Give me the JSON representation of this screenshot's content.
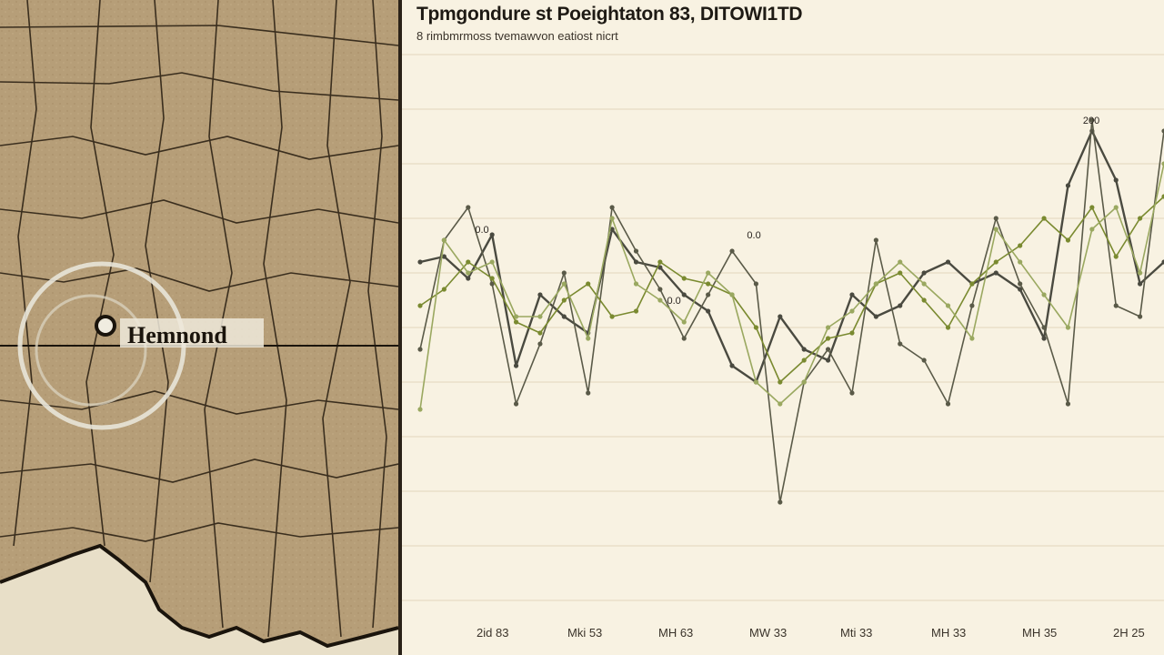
{
  "map": {
    "marker_label": "Hemnond",
    "colors": {
      "land": "#b69e78",
      "land_light": "#c8b28a",
      "border": "#3a2e1e",
      "coast": "#1a140c",
      "water": "#e8dfc8"
    }
  },
  "chart_data": {
    "type": "line",
    "title": "Tpmgondure st Poeightaton 83, DITOWI1TD",
    "subtitle": "8 rimbmrmoss tvemawvon eatiost nicrt",
    "xlabel": "",
    "ylabel": "",
    "x_tick_labels": [
      "2id 83",
      "Mki 53",
      "MH 63",
      "MW 33",
      "Mti 33",
      "MH 33",
      "MH 35",
      "2H 25"
    ],
    "ylim": [
      0,
      100
    ],
    "grid": true,
    "annotations": [
      {
        "text": "200",
        "x": 42,
        "y": 86
      },
      {
        "text": "0.0",
        "x": 4,
        "y": 66
      },
      {
        "text": "0.0",
        "x": 16,
        "y": 53
      },
      {
        "text": "0.0",
        "x": 21,
        "y": 65
      }
    ],
    "series": [
      {
        "color": "#4a4a40",
        "points": [
          [
            0,
            62
          ],
          [
            1.5,
            63
          ],
          [
            3,
            59
          ],
          [
            4.5,
            67
          ],
          [
            6,
            43
          ],
          [
            7.5,
            56
          ],
          [
            9,
            52
          ],
          [
            10.5,
            49
          ],
          [
            12,
            68
          ],
          [
            13.5,
            62
          ],
          [
            15,
            61
          ],
          [
            16.5,
            56
          ],
          [
            18,
            53
          ],
          [
            19.5,
            43
          ],
          [
            21,
            40
          ],
          [
            22.5,
            52
          ],
          [
            24,
            46
          ],
          [
            25.5,
            44
          ],
          [
            27,
            56
          ],
          [
            28.5,
            52
          ],
          [
            30,
            54
          ],
          [
            31.5,
            60
          ],
          [
            33,
            62
          ],
          [
            34.5,
            58
          ],
          [
            36,
            60
          ],
          [
            37.5,
            57
          ],
          [
            39,
            48
          ],
          [
            40.5,
            76
          ],
          [
            42,
            86
          ],
          [
            43.5,
            77
          ],
          [
            45,
            58
          ],
          [
            46.5,
            62
          ]
        ]
      },
      {
        "color": "#5a5a48",
        "points": [
          [
            0,
            46
          ],
          [
            1.5,
            66
          ],
          [
            3,
            72
          ],
          [
            4.5,
            58
          ],
          [
            6,
            36
          ],
          [
            7.5,
            47
          ],
          [
            9,
            60
          ],
          [
            10.5,
            38
          ],
          [
            12,
            72
          ],
          [
            13.5,
            64
          ],
          [
            15,
            57
          ],
          [
            16.5,
            48
          ],
          [
            18,
            56
          ],
          [
            19.5,
            64
          ],
          [
            21,
            58
          ],
          [
            22.5,
            18
          ],
          [
            24,
            40
          ],
          [
            25.5,
            46
          ],
          [
            27,
            38
          ],
          [
            28.5,
            66
          ],
          [
            30,
            47
          ],
          [
            31.5,
            44
          ],
          [
            33,
            36
          ],
          [
            34.5,
            54
          ],
          [
            36,
            70
          ],
          [
            37.5,
            58
          ],
          [
            39,
            50
          ],
          [
            40.5,
            36
          ],
          [
            42,
            88
          ],
          [
            43.5,
            54
          ],
          [
            45,
            52
          ],
          [
            46.5,
            86
          ]
        ]
      },
      {
        "color": "#7a8a30",
        "points": [
          [
            0,
            54
          ],
          [
            1.5,
            57
          ],
          [
            3,
            62
          ],
          [
            4.5,
            59
          ],
          [
            6,
            51
          ],
          [
            7.5,
            49
          ],
          [
            9,
            55
          ],
          [
            10.5,
            58
          ],
          [
            12,
            52
          ],
          [
            13.5,
            53
          ],
          [
            15,
            62
          ],
          [
            16.5,
            59
          ],
          [
            18,
            58
          ],
          [
            19.5,
            56
          ],
          [
            21,
            50
          ],
          [
            22.5,
            40
          ],
          [
            24,
            44
          ],
          [
            25.5,
            48
          ],
          [
            27,
            49
          ],
          [
            28.5,
            58
          ],
          [
            30,
            60
          ],
          [
            31.5,
            55
          ],
          [
            33,
            50
          ],
          [
            34.5,
            58
          ],
          [
            36,
            62
          ],
          [
            37.5,
            65
          ],
          [
            39,
            70
          ],
          [
            40.5,
            66
          ],
          [
            42,
            72
          ],
          [
            43.5,
            63
          ],
          [
            45,
            70
          ],
          [
            46.5,
            74
          ]
        ]
      },
      {
        "color": "#9aa860",
        "points": [
          [
            0,
            35
          ],
          [
            1.5,
            66
          ],
          [
            3,
            60
          ],
          [
            4.5,
            62
          ],
          [
            6,
            52
          ],
          [
            7.5,
            52
          ],
          [
            9,
            58
          ],
          [
            10.5,
            48
          ],
          [
            12,
            70
          ],
          [
            13.5,
            58
          ],
          [
            15,
            55
          ],
          [
            16.5,
            51
          ],
          [
            18,
            60
          ],
          [
            19.5,
            56
          ],
          [
            21,
            40
          ],
          [
            22.5,
            36
          ],
          [
            24,
            40
          ],
          [
            25.5,
            50
          ],
          [
            27,
            53
          ],
          [
            28.5,
            58
          ],
          [
            30,
            62
          ],
          [
            31.5,
            58
          ],
          [
            33,
            54
          ],
          [
            34.5,
            48
          ],
          [
            36,
            68
          ],
          [
            37.5,
            62
          ],
          [
            39,
            56
          ],
          [
            40.5,
            50
          ],
          [
            42,
            68
          ],
          [
            43.5,
            72
          ],
          [
            45,
            60
          ],
          [
            46.5,
            80
          ]
        ]
      }
    ],
    "xlim": [
      0,
      46.5
    ]
  }
}
